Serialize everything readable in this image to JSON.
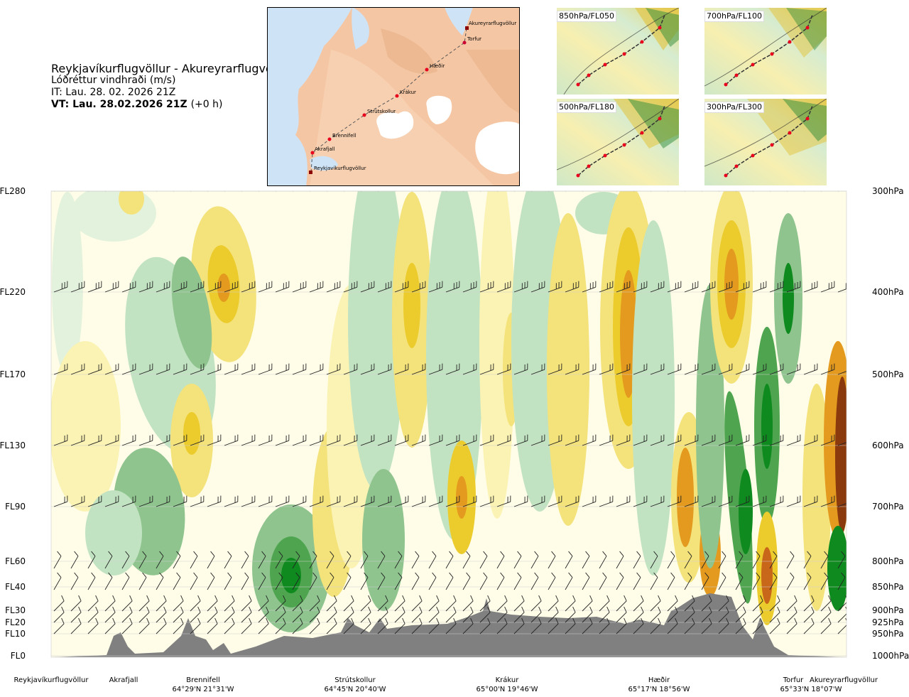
{
  "header": {
    "title": "Reykjavíkurflugvöllur - Akureyrarflugvöllur",
    "subtitle": "Lóðréttur vindhraði (m/s)",
    "issue_time": "IT: Lau. 28. 02. 2026 21Z",
    "valid_time": "VT: Lau. 28.02.2026 21Z",
    "valid_offset": "(+0 h)"
  },
  "map": {
    "waypoints": [
      "Akureyrarflugvöllur",
      "Torfur",
      "Hæðir",
      "Krákur",
      "Strútskollur",
      "Brennifell",
      "Akrafjall",
      "Reykjavíkurflugvöllur"
    ],
    "colors": {
      "sea": "#cfe3f6",
      "land": "#f6c29c",
      "ice": "#ffffff",
      "route": "#555555",
      "point": "#e8001c"
    }
  },
  "mini_maps": [
    {
      "label": "850hPa/FL050"
    },
    {
      "label": "700hPa/FL100"
    },
    {
      "label": "500hPa/FL180"
    },
    {
      "label": "300hPa/FL300"
    }
  ],
  "chart_data": {
    "type": "heatmap",
    "variable": "Lóðréttur vindhraði (m/s)",
    "y_left_ticks": [
      "FL280",
      "FL220",
      "FL170",
      "FL130",
      "FL90",
      "FL60",
      "FL40",
      "FL30",
      "FL20",
      "FL10",
      "FL0"
    ],
    "y_right_ticks": [
      "300hPa",
      "400hPa",
      "500hPa",
      "600hPa",
      "700hPa",
      "800hPa",
      "850hPa",
      "900hPa",
      "925hPa",
      "950hPa",
      "1000hPa"
    ],
    "x_locations": [
      {
        "name": "Reykjavíkurflugvöllur",
        "coord": ""
      },
      {
        "name": "Akrafjall",
        "coord": ""
      },
      {
        "name": "Brennifell",
        "coord": "64°29'N 21°31'W"
      },
      {
        "name": "Strútskollur",
        "coord": "64°45'N 20°40'W"
      },
      {
        "name": "Krákur",
        "coord": "65°00'N 19°46'W"
      },
      {
        "name": "Hæðir",
        "coord": "65°17'N 18°56'W"
      },
      {
        "name": "Torfur",
        "coord": "65°33'N 18°07'W"
      },
      {
        "name": "Akureyrarflugvöllur",
        "coord": ""
      }
    ],
    "colors": {
      "strong_down": "#0f8a1f",
      "down": "#4fa54f",
      "weak_down": "#8fc48f",
      "slight_down": "#c2e3c2",
      "faint_down": "#e3f2dc",
      "neutral": "#fffde8",
      "faint_up": "#fbf3b4",
      "slight_up": "#f4e27a",
      "up": "#eccc2c",
      "strong_up": "#e39a1e",
      "very_strong_up": "#c8661a",
      "extreme_up": "#8b3a0e",
      "terrain": "#808080"
    }
  }
}
